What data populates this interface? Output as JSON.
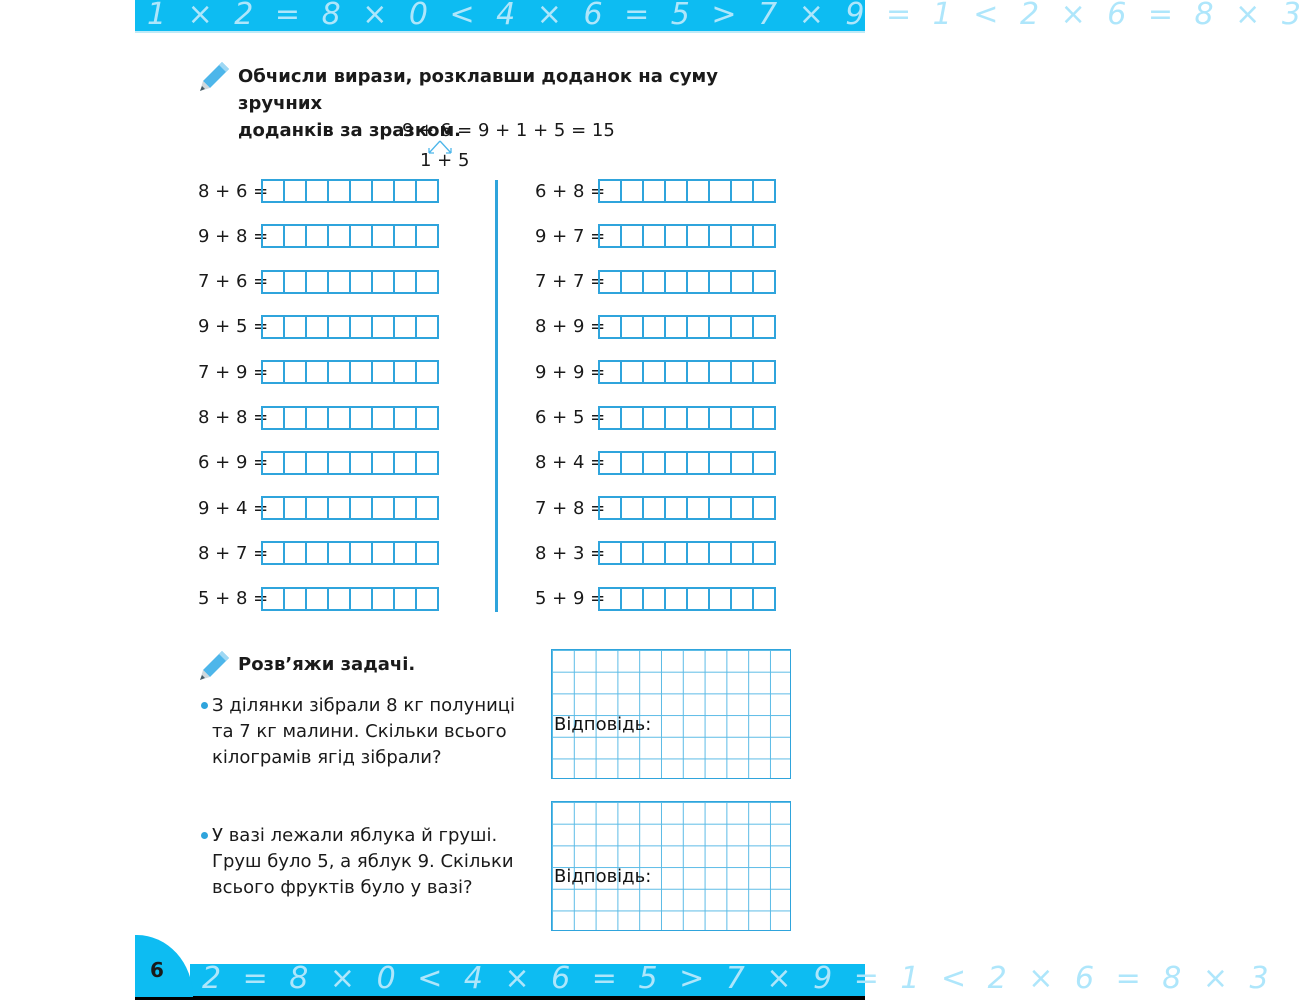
{
  "banner_top_text": "1 × 2 = 8 × 0 < 4 × 6 = 5 > 7 × 9 = 1 < 2 × 6 = 8 × 3",
  "banner_bottom_text": "2 = 8 × 0 < 4 × 6 = 5 > 7 × 9 = 1 < 2 × 6 = 8 × 3",
  "page_number": "6",
  "exercise1": {
    "heading_line1": "Обчисли вирази, розклавши доданок на суму зручних",
    "heading_line2": "доданків за зразком.",
    "example": "9 + 6 = 9 + 1 + 5 = 15",
    "example_split": "1 + 5",
    "left": [
      "8 + 6 =",
      "9 + 8 =",
      "7 + 6 =",
      "9 + 5 =",
      "7 + 9 =",
      "8 + 8 =",
      "6 + 9 =",
      "9 + 4 =",
      "8 + 7 =",
      "5 + 8 ="
    ],
    "right": [
      "6 + 8 =",
      "9 + 7 =",
      "7 + 7 =",
      "8 + 9 =",
      "9 + 9 =",
      "6 + 5 =",
      "8 + 4 =",
      "7 + 8 =",
      "8 + 3 =",
      "5 + 9 ="
    ]
  },
  "exercise2": {
    "heading": "Розв’яжи задачі.",
    "tasks": [
      {
        "text": "З ділянки зібрали 8 кг полуниці та 7 кг малини. Скільки всього кілограмів ягід зібрали?",
        "answer_label": "Відповідь:"
      },
      {
        "text": "У вазі лежали яблука й груші. Груш було 5, а яблук 9. Скільки всього фруктів було у вазі?",
        "answer_label": "Відповідь:"
      }
    ]
  },
  "colors": {
    "accent": "#0dbcf2",
    "box_border": "#2fa4dc"
  }
}
